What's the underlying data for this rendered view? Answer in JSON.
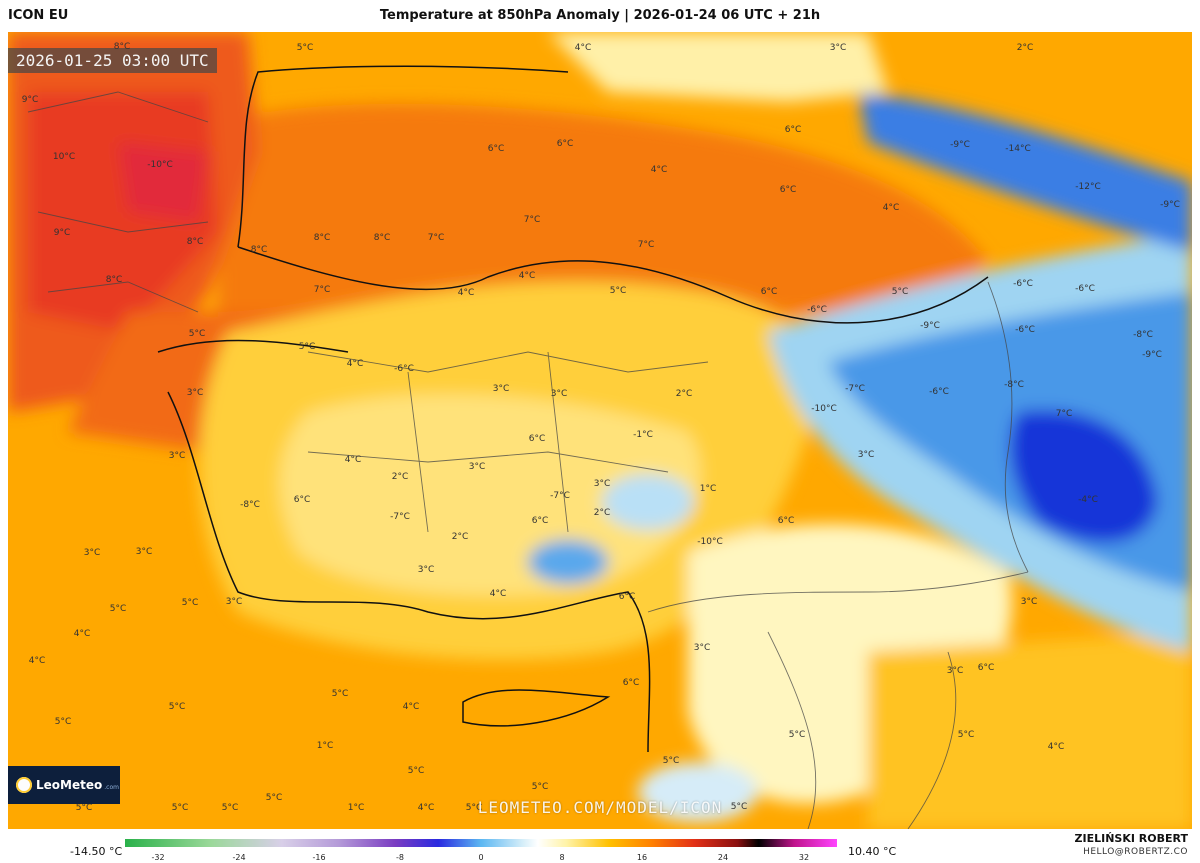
{
  "header": {
    "model_name": "ICON EU",
    "title": "Temperature at 850hPa Anomaly | 2026-01-24 06 UTC + 21h"
  },
  "map": {
    "timestamp": "2026-01-25 03:00 UTC",
    "watermark": "LEOMETEO.COM/MODEL/ICON",
    "logo_text": "LeoMeteo",
    "logo_sub": ".com",
    "labels": [
      "8°C",
      "5°C",
      "4°C",
      "3°C",
      "2°C",
      "9°C",
      "10°C",
      "-10°C",
      "-9°C",
      "-14°C",
      "-12°C",
      "-9°C",
      "6°C",
      "6°C",
      "4°C",
      "6°C",
      "6°C",
      "9°C",
      "8°C",
      "8°C",
      "8°C",
      "8°C",
      "7°C",
      "7°C",
      "7°C",
      "4°C",
      "6°C",
      "5°C",
      "4°C",
      "4°C",
      "5°C",
      "-6°C",
      "-6°C",
      "-9°C",
      "-8°C",
      "-6°C",
      "-6°C",
      "-9°C",
      "8°C",
      "7°C",
      "5°C",
      "5°C",
      "4°C",
      "-6°C",
      "-7°C",
      "-6°C",
      "-8°C",
      "-10°C",
      "7°C",
      "3°C",
      "3°C",
      "3°C",
      "2°C",
      "-1°C",
      "3°C",
      "6°C",
      "3°C",
      "4°C",
      "3°C",
      "2°C",
      "6°C",
      "-8°C",
      "-7°C",
      "2°C",
      "3°C",
      "1°C",
      "6°C",
      "6°C",
      "3°C",
      "3°C",
      "-7°C",
      "2°C",
      "-10°C",
      "-4°C",
      "3°C",
      "4°C",
      "6°C",
      "5°C",
      "5°C",
      "3°C",
      "3°C",
      "3°C",
      "6°C",
      "4°C",
      "4°C",
      "3°C",
      "6°C",
      "5°C",
      "5°C",
      "4°C",
      "5°C",
      "5°C",
      "1°C",
      "4°C",
      "5°C",
      "5°C",
      "5°C",
      "5°C",
      "5°C",
      "5°C",
      "5°C",
      "5°C",
      "1°C",
      "4°C",
      "5°C",
      "5°C"
    ]
  },
  "colorbar": {
    "min_label": "-14.50 °C",
    "max_label": "10.40 °C",
    "ticks": [
      "-32",
      "-24",
      "-16",
      "-8",
      "0",
      "8",
      "16",
      "24",
      "32"
    ]
  },
  "footer": {
    "author": "ZIELIŃSKI ROBERT",
    "email": "HELLO@ROBERTZ.CO"
  },
  "colors": {
    "warm_sea": "#ffa000",
    "hot": "#f06018",
    "hotter": "#e8302a",
    "mild": "#ffd24a",
    "pale": "#fff3b0",
    "cold": "#7cc6f0",
    "colder": "#2f6fdc",
    "coldest": "#1730d8"
  }
}
